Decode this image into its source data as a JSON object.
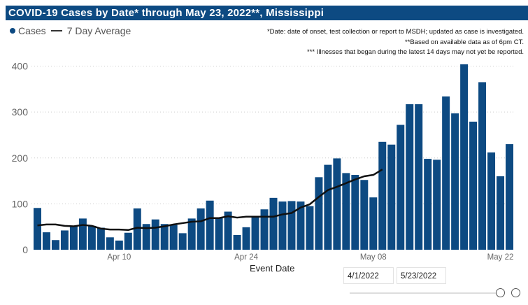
{
  "header": {
    "title": "COVID-19 Cases by Date* through May 23, 2022**, Mississippi"
  },
  "legend": {
    "cases": "Cases",
    "avg": "7 Day Average"
  },
  "notes": [
    "*Date: date of onset, test collection or report to MSDH; updated as case is investigated.",
    "**Based on available data as of 6pm CT.",
    "*** Illnesses that began during the latest 14 days may not yet be reported."
  ],
  "slicer": {
    "start": "4/1/2022",
    "end": "5/23/2022",
    "range_fraction": [
      0,
      1
    ]
  },
  "colors": {
    "bars": "#0d4a82",
    "line": "#111111",
    "title_bg": "#0d4a82"
  },
  "chart_data": {
    "type": "bar",
    "xlabel": "Event Date",
    "ylabel": "",
    "ylim": [
      0,
      400
    ],
    "yticks": [
      0,
      100,
      200,
      300,
      400
    ],
    "grid": true,
    "legend_position": "top-left",
    "x_start": "2022-04-01",
    "x_end": "2022-05-23",
    "xtick_labels": [
      {
        "label": "Apr 10",
        "date": "2022-04-10"
      },
      {
        "label": "Apr 24",
        "date": "2022-04-24"
      },
      {
        "label": "May 08",
        "date": "2022-05-08"
      },
      {
        "label": "May 22",
        "date": "2022-05-22"
      }
    ],
    "series": [
      {
        "name": "Cases",
        "type": "bar",
        "values": [
          91,
          38,
          21,
          42,
          52,
          68,
          52,
          48,
          27,
          20,
          37,
          90,
          56,
          66,
          56,
          54,
          36,
          68,
          90,
          107,
          70,
          83,
          32,
          49,
          71,
          88,
          113,
          105,
          106,
          105,
          95,
          158,
          185,
          199,
          167,
          163,
          152,
          114,
          235,
          229,
          272,
          317,
          317,
          198,
          196,
          334,
          297,
          404,
          279,
          365,
          212,
          160,
          230
        ]
      },
      {
        "name": "7 Day Average",
        "type": "line",
        "values": [
          53,
          55,
          55,
          52,
          51,
          54,
          52,
          46,
          44,
          44,
          43,
          48,
          47,
          48,
          51,
          55,
          58,
          61,
          62,
          69,
          69,
          73,
          70,
          72,
          72,
          72,
          72,
          77,
          80,
          92,
          99,
          115,
          130,
          137,
          145,
          153,
          160,
          163,
          175
        ]
      }
    ]
  }
}
